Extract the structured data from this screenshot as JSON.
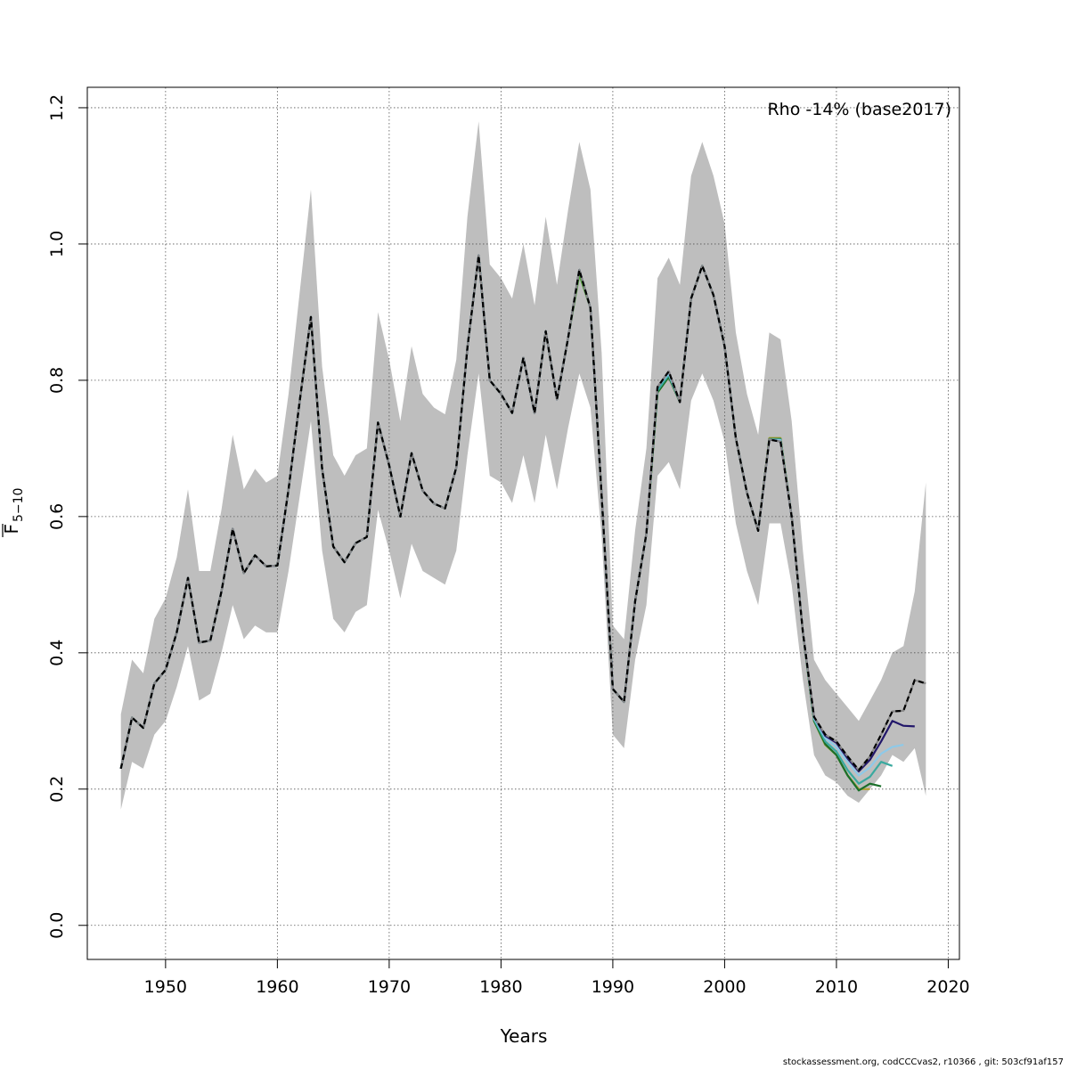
{
  "chart_data": {
    "type": "line",
    "title": "",
    "xlabel": "Years",
    "ylabel_main": "F",
    "ylabel_sub": "5−10",
    "annotation": "Rho -14% (base2017)",
    "xlim": [
      1943,
      2021
    ],
    "ylim": [
      -0.05,
      1.23
    ],
    "x_ticks": [
      "1950",
      "1960",
      "1970",
      "1980",
      "1990",
      "2000",
      "2010",
      "2020"
    ],
    "y_ticks": [
      "0.0",
      "0.2",
      "0.4",
      "0.6",
      "0.8",
      "1.0",
      "1.2"
    ],
    "grid": true,
    "band_color": "#bebebe",
    "x": [
      1946,
      1947,
      1948,
      1949,
      1950,
      1951,
      1952,
      1953,
      1954,
      1955,
      1956,
      1957,
      1958,
      1959,
      1960,
      1961,
      1962,
      1963,
      1964,
      1965,
      1966,
      1967,
      1968,
      1969,
      1970,
      1971,
      1972,
      1973,
      1974,
      1975,
      1976,
      1977,
      1978,
      1979,
      1980,
      1981,
      1982,
      1983,
      1984,
      1985,
      1986,
      1987,
      1988,
      1989,
      1990,
      1991,
      1992,
      1993,
      1994,
      1995,
      1996,
      1997,
      1998,
      1999,
      2000,
      2001,
      2002,
      2003,
      2004,
      2005,
      2006,
      2007,
      2008,
      2009,
      2010,
      2011,
      2012,
      2013,
      2014,
      2015,
      2016,
      2017,
      2018
    ],
    "band_upper": [
      0.31,
      0.39,
      0.37,
      0.45,
      0.48,
      0.54,
      0.64,
      0.52,
      0.52,
      0.61,
      0.72,
      0.64,
      0.67,
      0.65,
      0.66,
      0.78,
      0.93,
      1.08,
      0.82,
      0.69,
      0.66,
      0.69,
      0.7,
      0.9,
      0.83,
      0.74,
      0.85,
      0.78,
      0.76,
      0.75,
      0.83,
      1.04,
      1.18,
      0.97,
      0.95,
      0.92,
      1.0,
      0.91,
      1.04,
      0.94,
      1.05,
      1.15,
      1.08,
      0.84,
      0.44,
      0.42,
      0.58,
      0.7,
      0.95,
      0.98,
      0.94,
      1.1,
      1.15,
      1.1,
      1.03,
      0.87,
      0.78,
      0.72,
      0.87,
      0.86,
      0.74,
      0.55,
      0.39,
      0.36,
      0.34,
      0.32,
      0.3,
      0.33,
      0.36,
      0.4,
      0.41,
      0.49,
      0.65
    ],
    "band_lower": [
      0.17,
      0.24,
      0.23,
      0.28,
      0.3,
      0.35,
      0.41,
      0.33,
      0.34,
      0.4,
      0.47,
      0.42,
      0.44,
      0.43,
      0.43,
      0.52,
      0.63,
      0.74,
      0.55,
      0.45,
      0.43,
      0.46,
      0.47,
      0.61,
      0.55,
      0.48,
      0.56,
      0.52,
      0.51,
      0.5,
      0.55,
      0.69,
      0.81,
      0.66,
      0.65,
      0.62,
      0.69,
      0.62,
      0.72,
      0.64,
      0.73,
      0.81,
      0.76,
      0.57,
      0.28,
      0.26,
      0.39,
      0.47,
      0.66,
      0.68,
      0.64,
      0.77,
      0.81,
      0.77,
      0.71,
      0.59,
      0.52,
      0.47,
      0.59,
      0.59,
      0.5,
      0.36,
      0.25,
      0.22,
      0.21,
      0.19,
      0.18,
      0.2,
      0.22,
      0.25,
      0.24,
      0.26,
      0.19
    ],
    "series": [
      {
        "color": "#000000",
        "dashed": true,
        "width": 2.2,
        "values": [
          0.23,
          0.305,
          0.29,
          0.355,
          0.375,
          0.43,
          0.51,
          0.415,
          0.418,
          0.49,
          0.582,
          0.517,
          0.543,
          0.527,
          0.528,
          0.64,
          0.77,
          0.893,
          0.67,
          0.556,
          0.533,
          0.561,
          0.57,
          0.738,
          0.675,
          0.6,
          0.693,
          0.638,
          0.619,
          0.612,
          0.672,
          0.848,
          0.983,
          0.8,
          0.78,
          0.752,
          0.833,
          0.752,
          0.872,
          0.772,
          0.862,
          0.962,
          0.906,
          0.63,
          0.347,
          0.328,
          0.476,
          0.575,
          0.79,
          0.813,
          0.768,
          0.92,
          0.968,
          0.925,
          0.85,
          0.715,
          0.635,
          0.579,
          0.713,
          0.71,
          0.6,
          0.43,
          0.306,
          0.28,
          0.27,
          0.248,
          0.228,
          0.248,
          0.28,
          0.314,
          0.315,
          0.36,
          0.355
        ]
      },
      {
        "color": "#22176a",
        "dashed": false,
        "width": 2.2,
        "values": [
          0.23,
          0.305,
          0.29,
          0.355,
          0.375,
          0.43,
          0.51,
          0.415,
          0.418,
          0.49,
          0.582,
          0.517,
          0.543,
          0.527,
          0.528,
          0.64,
          0.77,
          0.893,
          0.67,
          0.556,
          0.533,
          0.561,
          0.57,
          0.738,
          0.675,
          0.6,
          0.693,
          0.638,
          0.619,
          0.612,
          0.672,
          0.848,
          0.983,
          0.8,
          0.78,
          0.752,
          0.833,
          0.752,
          0.872,
          0.772,
          0.862,
          0.962,
          0.906,
          0.63,
          0.347,
          0.328,
          0.476,
          0.575,
          0.79,
          0.813,
          0.768,
          0.92,
          0.968,
          0.925,
          0.85,
          0.715,
          0.635,
          0.579,
          0.713,
          0.71,
          0.6,
          0.43,
          0.306,
          0.278,
          0.268,
          0.245,
          0.226,
          0.243,
          0.27,
          0.3,
          0.293,
          0.292,
          null
        ]
      },
      {
        "color": "#8ec9e8",
        "dashed": false,
        "width": 2.2,
        "values": [
          0.23,
          0.305,
          0.29,
          0.355,
          0.375,
          0.43,
          0.51,
          0.415,
          0.418,
          0.49,
          0.582,
          0.517,
          0.543,
          0.527,
          0.528,
          0.64,
          0.77,
          0.893,
          0.67,
          0.556,
          0.533,
          0.561,
          0.57,
          0.738,
          0.675,
          0.6,
          0.693,
          0.638,
          0.619,
          0.612,
          0.672,
          0.848,
          0.983,
          0.8,
          0.78,
          0.752,
          0.833,
          0.752,
          0.872,
          0.772,
          0.862,
          0.962,
          0.906,
          0.63,
          0.347,
          0.328,
          0.476,
          0.575,
          0.79,
          0.81,
          0.768,
          0.92,
          0.968,
          0.925,
          0.85,
          0.715,
          0.635,
          0.579,
          0.713,
          0.712,
          0.6,
          0.43,
          0.304,
          0.275,
          0.262,
          0.24,
          0.22,
          0.232,
          0.252,
          0.262,
          0.265,
          null,
          null
        ]
      },
      {
        "color": "#3aa99f",
        "dashed": false,
        "width": 2.2,
        "values": [
          0.23,
          0.305,
          0.29,
          0.355,
          0.375,
          0.43,
          0.51,
          0.415,
          0.418,
          0.49,
          0.582,
          0.517,
          0.543,
          0.527,
          0.528,
          0.64,
          0.77,
          0.893,
          0.67,
          0.556,
          0.533,
          0.561,
          0.57,
          0.738,
          0.675,
          0.6,
          0.693,
          0.638,
          0.619,
          0.612,
          0.672,
          0.848,
          0.983,
          0.8,
          0.78,
          0.752,
          0.833,
          0.752,
          0.872,
          0.772,
          0.862,
          0.962,
          0.906,
          0.63,
          0.347,
          0.328,
          0.476,
          0.575,
          0.785,
          0.808,
          0.768,
          0.92,
          0.968,
          0.925,
          0.85,
          0.715,
          0.635,
          0.579,
          0.713,
          0.713,
          0.6,
          0.43,
          0.302,
          0.27,
          0.255,
          0.228,
          0.208,
          0.218,
          0.24,
          0.234,
          null,
          null,
          null
        ]
      },
      {
        "color": "#1a6f2a",
        "dashed": false,
        "width": 2.2,
        "values": [
          0.23,
          0.305,
          0.29,
          0.355,
          0.375,
          0.43,
          0.51,
          0.415,
          0.418,
          0.49,
          0.582,
          0.517,
          0.543,
          0.527,
          0.528,
          0.64,
          0.77,
          0.893,
          0.67,
          0.556,
          0.533,
          0.561,
          0.57,
          0.738,
          0.675,
          0.6,
          0.693,
          0.638,
          0.619,
          0.612,
          0.672,
          0.848,
          0.983,
          0.8,
          0.78,
          0.752,
          0.833,
          0.752,
          0.872,
          0.772,
          0.862,
          0.962,
          0.906,
          0.63,
          0.347,
          0.328,
          0.476,
          0.575,
          0.782,
          0.805,
          0.768,
          0.92,
          0.968,
          0.925,
          0.85,
          0.715,
          0.635,
          0.579,
          0.714,
          0.714,
          0.6,
          0.43,
          0.3,
          0.266,
          0.25,
          0.22,
          0.198,
          0.208,
          0.204,
          null,
          null,
          null,
          null
        ]
      },
      {
        "color": "#b5a132",
        "dashed": false,
        "width": 2.2,
        "values": [
          0.23,
          0.305,
          0.29,
          0.355,
          0.375,
          0.43,
          0.51,
          0.415,
          0.418,
          0.49,
          0.582,
          0.517,
          0.543,
          0.527,
          0.528,
          0.64,
          0.77,
          0.893,
          0.67,
          0.556,
          0.533,
          0.561,
          0.57,
          0.738,
          0.675,
          0.6,
          0.693,
          0.638,
          0.619,
          0.612,
          0.672,
          0.848,
          0.983,
          0.8,
          0.78,
          0.752,
          0.833,
          0.752,
          0.872,
          0.772,
          0.862,
          0.962,
          0.906,
          0.63,
          0.347,
          0.328,
          0.476,
          0.575,
          0.782,
          0.805,
          0.768,
          0.92,
          0.968,
          0.925,
          0.85,
          0.715,
          0.635,
          0.579,
          0.715,
          0.715,
          0.6,
          0.43,
          0.3,
          0.265,
          0.25,
          0.22,
          0.2,
          0.2,
          null,
          null,
          null,
          null,
          null
        ]
      },
      {
        "color": "#52a833",
        "dashed": false,
        "width": 2.2,
        "values": [
          0.23,
          0.305,
          0.29,
          0.355,
          0.375,
          0.43,
          0.51,
          0.415,
          0.418,
          0.49,
          0.582,
          0.517,
          0.543,
          0.527,
          0.528,
          0.64,
          0.77,
          0.893,
          0.67,
          0.556,
          0.533,
          0.561,
          0.57,
          0.738,
          0.675,
          0.6,
          0.693,
          0.638,
          0.619,
          0.612,
          0.672,
          0.848,
          0.983,
          0.8,
          0.78,
          0.752,
          0.833,
          0.752,
          0.872,
          0.772,
          0.862,
          0.955,
          0.906,
          0.63,
          0.347,
          0.328,
          0.476,
          0.575,
          0.782,
          0.805,
          0.768,
          0.92,
          0.968,
          0.925,
          0.85,
          0.715,
          0.635,
          0.579,
          0.715,
          0.715,
          0.6,
          0.43,
          0.3,
          0.265,
          0.25,
          0.22,
          0.2,
          null,
          null,
          null,
          null,
          null,
          null
        ]
      }
    ]
  },
  "footer": "stockassessment.org, codCCCvas2, r10366 , git: 503cf91af157"
}
